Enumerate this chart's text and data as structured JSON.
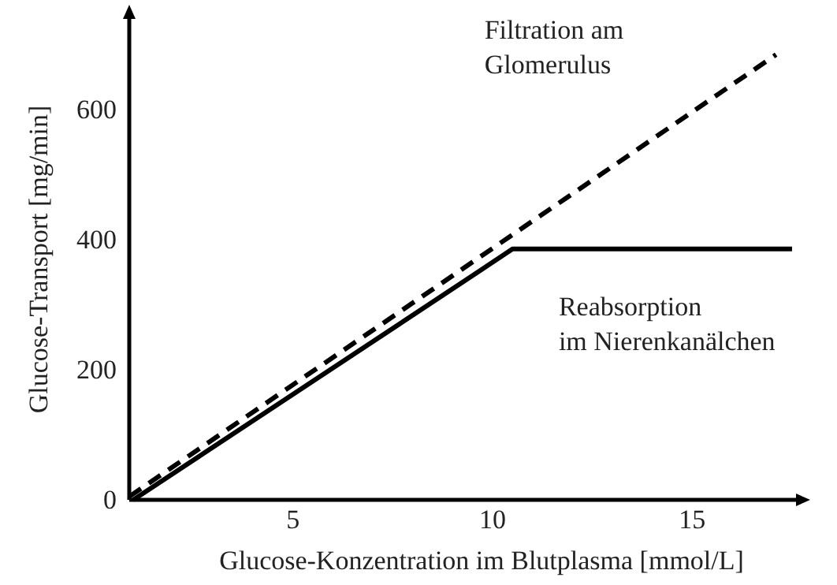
{
  "chart_data": {
    "type": "line",
    "xlabel": "Glucose-Konzentration im Blutplasma [mmol/L]",
    "ylabel": "Glucose-Transport [mg/min]",
    "xlim": [
      0.9,
      17.6
    ],
    "ylim": [
      0,
      740
    ],
    "xticks": [
      5,
      10,
      15
    ],
    "yticks": [
      0,
      200,
      400,
      600
    ],
    "grid": false,
    "marker": "none",
    "series": [
      {
        "name": "Filtration am Glomerulus",
        "color": "#000000",
        "line_style": "dashed",
        "x": [
          0.9,
          17.1
        ],
        "values": [
          5,
          685
        ]
      },
      {
        "name": "Reabsorption im Nierenkanälchen",
        "color": "#000000",
        "line_style": "solid",
        "x": [
          1.0,
          9.5,
          10.5,
          17.5
        ],
        "values": [
          0,
          345,
          386,
          386
        ]
      }
    ]
  }
}
